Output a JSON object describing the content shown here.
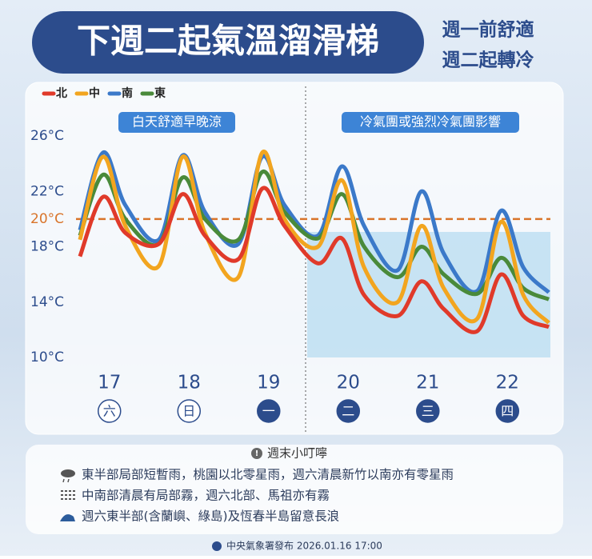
{
  "header": {
    "title": "下週二起氣溫溜滑梯",
    "side_lines": [
      "週一前舒適",
      "週二起轉冷"
    ]
  },
  "chart_data": {
    "type": "line",
    "region_labels": [
      "白天舒適早晚涼",
      "冷氣團或強烈冷氣團影響"
    ],
    "x": [
      16.63,
      16.92,
      17.2,
      17.62,
      17.92,
      18.2,
      18.62,
      18.92,
      19.2,
      19.62,
      19.92,
      20.2,
      20.62,
      20.92,
      21.2,
      21.62,
      21.92,
      22.2,
      22.52
    ],
    "xlim": [
      16.5,
      22.6
    ],
    "xticks": [
      17,
      18,
      19,
      20,
      21,
      22
    ],
    "x_tick_sublabels": [
      "六",
      "日",
      "一",
      "二",
      "三",
      "四"
    ],
    "ylim": [
      10,
      26
    ],
    "yticks": [
      {
        "value": 10,
        "label": "10°C"
      },
      {
        "value": 14,
        "label": "14°C"
      },
      {
        "value": 18,
        "label": "18°C"
      },
      {
        "value": 22,
        "label": "22°C"
      },
      {
        "value": 26,
        "label": "26°C"
      }
    ],
    "reference_line": {
      "value": 20,
      "label": "20°C",
      "color": "#d9742a"
    },
    "series": [
      {
        "name": "北",
        "color": "#e03a2a",
        "values": [
          17.3,
          21.6,
          19,
          18.2,
          21.8,
          18.8,
          17.1,
          22.2,
          19.5,
          16.8,
          18.6,
          14.5,
          13.0,
          15.5,
          13.5,
          11.9,
          16.0,
          13.0,
          12.2
        ]
      },
      {
        "name": "中",
        "color": "#f2a51f",
        "values": [
          18.5,
          24.5,
          19.5,
          16.6,
          24.5,
          19,
          15.8,
          24.8,
          20,
          18,
          22.8,
          16.5,
          14.0,
          19.5,
          15,
          12.8,
          19.8,
          14.5,
          12.5
        ]
      },
      {
        "name": "南",
        "color": "#3b79c9",
        "values": [
          19.2,
          24.8,
          21,
          18.5,
          24.6,
          20.5,
          18.2,
          24.5,
          21,
          18.8,
          23.8,
          19.5,
          16.3,
          22,
          17.5,
          14.8,
          20.6,
          16.5,
          14.7
        ]
      },
      {
        "name": "東",
        "color": "#4a8a3a",
        "values": [
          18.8,
          23.2,
          20,
          18.2,
          23,
          20,
          18.5,
          23.4,
          20.5,
          18.6,
          21.8,
          18,
          15.8,
          18,
          16,
          14.6,
          17.2,
          15,
          14.2
        ]
      }
    ]
  },
  "notes": {
    "heading": "週末小叮嚀",
    "items": [
      "東半部局部短暫雨，桃園以北零星雨，週六清晨新竹以南亦有零星雨",
      "中南部清晨有局部霧，週六北部、馬祖亦有霧",
      "週六東半部(含蘭嶼、綠島)及恆春半島留意長浪"
    ]
  },
  "footer": "中央氣象署發布 2026.01.16 17:00"
}
